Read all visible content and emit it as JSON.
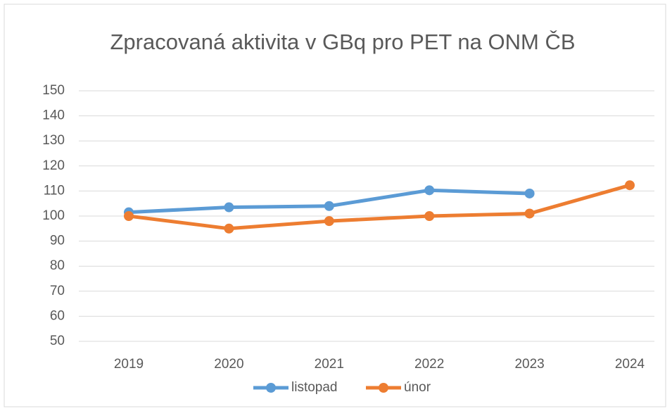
{
  "chart_data": {
    "type": "line",
    "title": "Zpracovaná aktivita v GBq pro PET na ONM ČB",
    "categories": [
      "2019",
      "2020",
      "2021",
      "2022",
      "2023",
      "2024"
    ],
    "series": [
      {
        "name": "listopad",
        "color": "#5b9bd5",
        "values": [
          101.5,
          103.5,
          104,
          110.3,
          109,
          null
        ]
      },
      {
        "name": "únor",
        "color": "#ed7d31",
        "values": [
          100,
          95,
          98,
          100,
          101,
          112.3
        ]
      }
    ],
    "ylim": [
      50,
      150
    ],
    "yticks": [
      50,
      60,
      70,
      80,
      90,
      100,
      110,
      120,
      130,
      140,
      150
    ],
    "grid": true,
    "legend": "bottom"
  }
}
